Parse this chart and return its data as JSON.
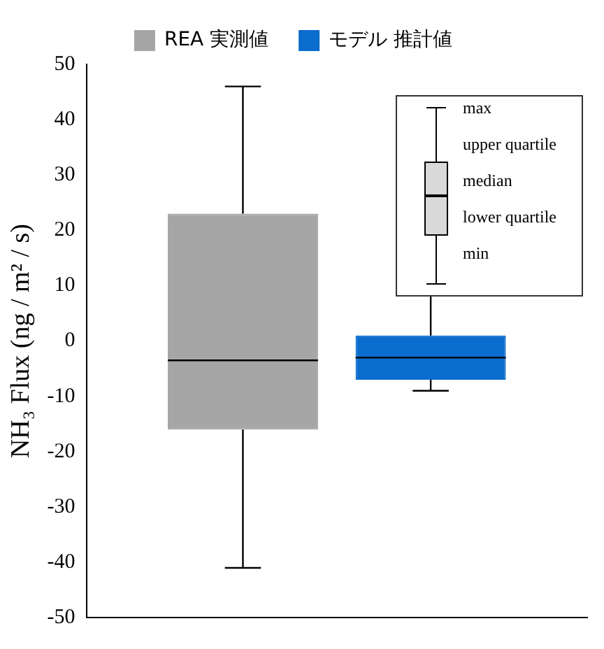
{
  "chart_data": {
    "type": "box",
    "ylabel": "NH₃ Flux (ng / m² / s)",
    "categories": [
      null
    ],
    "series": [
      {
        "name": "REA 実測値",
        "color": "#a6a6a6",
        "boxes": [
          {
            "low": -41,
            "q1": -16,
            "median": -3.5,
            "q3": 23,
            "high": 46
          }
        ]
      },
      {
        "name": "モデル 推計値",
        "color": "#0a6ccc",
        "boxes": [
          {
            "low": -9,
            "q1": -7,
            "median": -3,
            "q3": 1,
            "high": 10
          }
        ]
      }
    ],
    "ylim": [
      -50,
      50
    ],
    "yticks": [
      -50,
      -40,
      -30,
      -20,
      -10,
      0,
      10,
      20,
      30,
      40,
      50
    ],
    "grid": false,
    "legend": "top",
    "annotations": [
      "max",
      "upper quartile",
      "median",
      "lower quartile",
      "min"
    ]
  }
}
